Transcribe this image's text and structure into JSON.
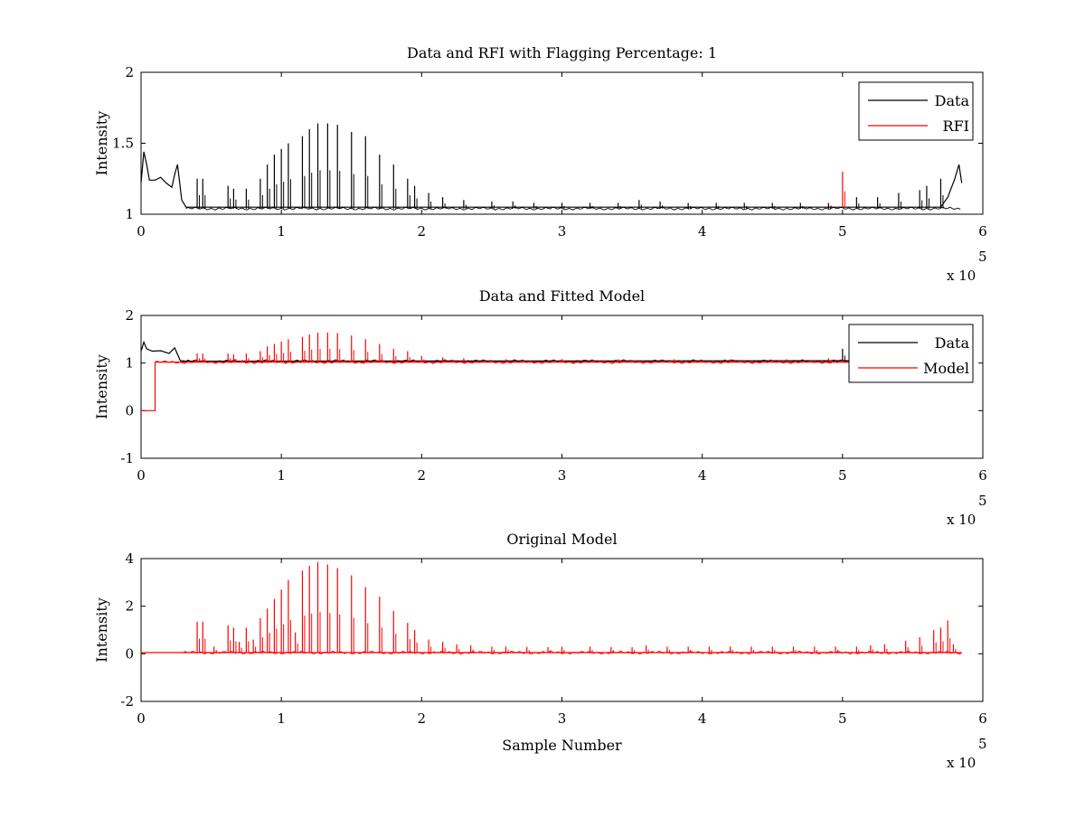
{
  "chart_data": [
    {
      "type": "line",
      "title": "Data and RFI with Flagging Percentage: 1",
      "xlabel": "",
      "ylabel": "Intensity",
      "xlim": [
        0,
        600000
      ],
      "ylim": [
        1,
        2
      ],
      "x_ticks": [
        "0",
        "1",
        "2",
        "3",
        "4",
        "5",
        "6"
      ],
      "y_ticks": [
        "1",
        "1.5",
        "2"
      ],
      "x_exponent": {
        "base": "x 10",
        "power": "5"
      },
      "legend": {
        "placement": "top-right",
        "entries": [
          "Data",
          "RFI"
        ]
      },
      "colors": {
        "Data": "#000000",
        "RFI": "#ff0000"
      },
      "series": [
        {
          "name": "Data",
          "baseline": 1.04,
          "x_end": 585000,
          "points": [
            [
              0,
              1.22
            ],
            [
              2000,
              1.44
            ],
            [
              4000,
              1.35
            ],
            [
              6000,
              1.24
            ],
            [
              10000,
              1.24
            ],
            [
              14000,
              1.26
            ],
            [
              18000,
              1.22
            ],
            [
              22000,
              1.19
            ],
            [
              24000,
              1.28
            ],
            [
              26000,
              1.35
            ],
            [
              29000,
              1.1
            ],
            [
              32000,
              1.05
            ],
            [
              570000,
              1.05
            ],
            [
              575000,
              1.12
            ],
            [
              580000,
              1.25
            ],
            [
              583000,
              1.35
            ],
            [
              585000,
              1.22
            ]
          ],
          "spikes": [
            [
              40000,
              1.25
            ],
            [
              44000,
              1.25
            ],
            [
              62000,
              1.2
            ],
            [
              66000,
              1.18
            ],
            [
              75000,
              1.18
            ],
            [
              85000,
              1.25
            ],
            [
              90000,
              1.35
            ],
            [
              95000,
              1.42
            ],
            [
              100000,
              1.46
            ],
            [
              105000,
              1.5
            ],
            [
              115000,
              1.55
            ],
            [
              120000,
              1.6
            ],
            [
              126000,
              1.64
            ],
            [
              133000,
              1.64
            ],
            [
              140000,
              1.63
            ],
            [
              150000,
              1.58
            ],
            [
              160000,
              1.55
            ],
            [
              170000,
              1.42
            ],
            [
              180000,
              1.35
            ],
            [
              190000,
              1.25
            ],
            [
              195000,
              1.2
            ],
            [
              205000,
              1.15
            ],
            [
              215000,
              1.12
            ],
            [
              230000,
              1.1
            ],
            [
              250000,
              1.09
            ],
            [
              265000,
              1.09
            ],
            [
              280000,
              1.08
            ],
            [
              300000,
              1.08
            ],
            [
              320000,
              1.08
            ],
            [
              340000,
              1.08
            ],
            [
              355000,
              1.1
            ],
            [
              370000,
              1.09
            ],
            [
              390000,
              1.08
            ],
            [
              410000,
              1.08
            ],
            [
              430000,
              1.08
            ],
            [
              450000,
              1.08
            ],
            [
              470000,
              1.08
            ],
            [
              490000,
              1.08
            ],
            [
              510000,
              1.12
            ],
            [
              525000,
              1.12
            ],
            [
              540000,
              1.15
            ],
            [
              555000,
              1.17
            ],
            [
              560000,
              1.2
            ],
            [
              570000,
              1.25
            ]
          ]
        },
        {
          "name": "RFI",
          "spikes": [
            [
              500000,
              1.3
            ],
            [
              492000,
              1.06
            ]
          ]
        }
      ]
    },
    {
      "type": "line",
      "title": "Data and Fitted Model",
      "xlabel": "",
      "ylabel": "Intensity",
      "xlim": [
        0,
        600000
      ],
      "ylim": [
        -1,
        2
      ],
      "x_ticks": [
        "0",
        "1",
        "2",
        "3",
        "4",
        "5",
        "6"
      ],
      "y_ticks": [
        "-1",
        "0",
        "1",
        "2"
      ],
      "x_exponent": {
        "base": "x 10",
        "power": "5"
      },
      "legend": {
        "placement": "top-right",
        "entries": [
          "Data",
          "Model"
        ]
      },
      "colors": {
        "Data": "#000000",
        "Model": "#ff0000"
      },
      "series": [
        {
          "name": "Data",
          "baseline": 1.04,
          "x_end": 585000,
          "points": [
            [
              0,
              1.25
            ],
            [
              2000,
              1.44
            ],
            [
              4000,
              1.3
            ],
            [
              8000,
              1.25
            ],
            [
              14000,
              1.26
            ],
            [
              20000,
              1.2
            ],
            [
              24000,
              1.32
            ],
            [
              28000,
              1.05
            ],
            [
              32000,
              1.04
            ],
            [
              585000,
              1.05
            ]
          ],
          "spikes": [
            [
              500000,
              1.3
            ]
          ]
        },
        {
          "name": "Model",
          "baseline": 1.02,
          "x_end": 585000,
          "points": [
            [
              0,
              0
            ],
            [
              10000,
              0
            ],
            [
              10000,
              1.02
            ],
            [
              585000,
              1.02
            ]
          ],
          "spikes": [
            [
              40000,
              1.2
            ],
            [
              44000,
              1.2
            ],
            [
              62000,
              1.2
            ],
            [
              66000,
              1.18
            ],
            [
              75000,
              1.2
            ],
            [
              85000,
              1.25
            ],
            [
              90000,
              1.35
            ],
            [
              95000,
              1.4
            ],
            [
              100000,
              1.45
            ],
            [
              105000,
              1.5
            ],
            [
              115000,
              1.55
            ],
            [
              120000,
              1.6
            ],
            [
              126000,
              1.64
            ],
            [
              133000,
              1.64
            ],
            [
              140000,
              1.63
            ],
            [
              150000,
              1.58
            ],
            [
              160000,
              1.5
            ],
            [
              170000,
              1.4
            ],
            [
              180000,
              1.3
            ],
            [
              190000,
              1.25
            ],
            [
              200000,
              1.15
            ],
            [
              215000,
              1.12
            ],
            [
              230000,
              1.1
            ],
            [
              260000,
              1.08
            ],
            [
              300000,
              1.08
            ],
            [
              340000,
              1.08
            ],
            [
              380000,
              1.08
            ],
            [
              420000,
              1.08
            ],
            [
              460000,
              1.08
            ],
            [
              490000,
              1.1
            ]
          ]
        }
      ]
    },
    {
      "type": "line",
      "title": "Original Model",
      "xlabel": "Sample Number",
      "ylabel": "Intensity",
      "xlim": [
        0,
        600000
      ],
      "ylim": [
        -2,
        4
      ],
      "x_ticks": [
        "0",
        "1",
        "2",
        "3",
        "4",
        "5",
        "6"
      ],
      "y_ticks": [
        "-2",
        "0",
        "2",
        "4"
      ],
      "x_exponent": {
        "base": "x 10",
        "power": "5"
      },
      "colors": {
        "Model": "#ff0000"
      },
      "series": [
        {
          "baseline": 0.05,
          "x_end": 585000,
          "points": [
            [
              0,
              0.05
            ],
            [
              585000,
              0.05
            ]
          ],
          "spikes": [
            [
              40000,
              1.35
            ],
            [
              44000,
              1.35
            ],
            [
              52000,
              0.3
            ],
            [
              62000,
              1.2
            ],
            [
              66000,
              1.1
            ],
            [
              70000,
              0.5
            ],
            [
              75000,
              1.1
            ],
            [
              80000,
              0.6
            ],
            [
              85000,
              1.5
            ],
            [
              90000,
              1.9
            ],
            [
              95000,
              2.3
            ],
            [
              100000,
              2.7
            ],
            [
              105000,
              3.1
            ],
            [
              110000,
              0.9
            ],
            [
              115000,
              3.5
            ],
            [
              120000,
              3.7
            ],
            [
              126000,
              3.85
            ],
            [
              133000,
              3.75
            ],
            [
              140000,
              3.6
            ],
            [
              150000,
              3.3
            ],
            [
              160000,
              2.8
            ],
            [
              170000,
              2.4
            ],
            [
              180000,
              1.8
            ],
            [
              190000,
              1.3
            ],
            [
              195000,
              1.0
            ],
            [
              205000,
              0.6
            ],
            [
              215000,
              0.5
            ],
            [
              225000,
              0.4
            ],
            [
              235000,
              0.35
            ],
            [
              250000,
              0.3
            ],
            [
              260000,
              0.3
            ],
            [
              275000,
              0.28
            ],
            [
              290000,
              0.28
            ],
            [
              300000,
              0.3
            ],
            [
              320000,
              0.3
            ],
            [
              335000,
              0.28
            ],
            [
              350000,
              0.28
            ],
            [
              360000,
              0.35
            ],
            [
              375000,
              0.3
            ],
            [
              390000,
              0.3
            ],
            [
              405000,
              0.3
            ],
            [
              420000,
              0.3
            ],
            [
              435000,
              0.3
            ],
            [
              450000,
              0.3
            ],
            [
              465000,
              0.3
            ],
            [
              480000,
              0.3
            ],
            [
              495000,
              0.3
            ],
            [
              510000,
              0.3
            ],
            [
              520000,
              0.35
            ],
            [
              530000,
              0.4
            ],
            [
              545000,
              0.55
            ],
            [
              555000,
              0.7
            ],
            [
              565000,
              1.0
            ],
            [
              570000,
              1.1
            ],
            [
              575000,
              1.4
            ],
            [
              579000,
              0.4
            ]
          ]
        }
      ]
    }
  ]
}
